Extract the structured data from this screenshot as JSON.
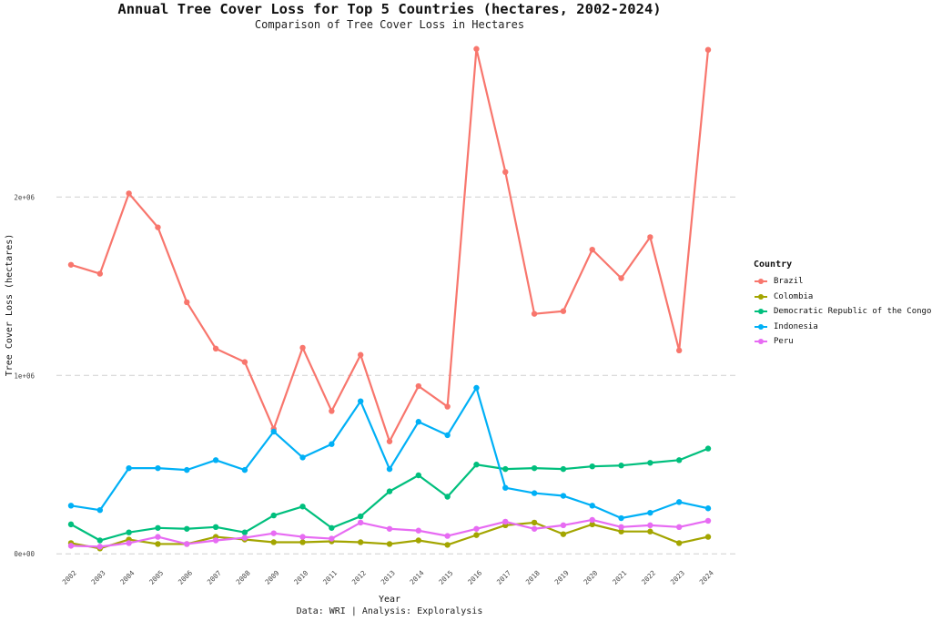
{
  "chart_data": {
    "type": "line",
    "title": "Annual Tree Cover Loss for Top 5 Countries (hectares, 2002-2024)",
    "subtitle": "Comparison of Tree Cover Loss in Hectares",
    "xlabel": "Year",
    "ylabel": "Tree Cover Loss (hectares)",
    "caption": "Data: WRI | Analysis: Exploralysis",
    "legend_title": "Country",
    "legend_position": "right",
    "grid": "horizontal major dashed",
    "ylim": [
      -50000,
      2900000
    ],
    "y_ticks": [
      0,
      1000000,
      2000000
    ],
    "y_tick_labels": [
      "0e+00",
      "1e+06",
      "2e+06"
    ],
    "x": [
      "2002",
      "2003",
      "2004",
      "2005",
      "2006",
      "2007",
      "2008",
      "2009",
      "2010",
      "2011",
      "2012",
      "2013",
      "2014",
      "2015",
      "2016",
      "2017",
      "2018",
      "2019",
      "2020",
      "2021",
      "2022",
      "2023",
      "2024"
    ],
    "series": [
      {
        "name": "Brazil",
        "color": "#F8766D",
        "values": [
          1620000,
          1570000,
          2020000,
          1830000,
          1410000,
          1150000,
          1075000,
          700000,
          1155000,
          800000,
          1115000,
          630000,
          940000,
          825000,
          2830000,
          2140000,
          1345000,
          1360000,
          1705000,
          1545000,
          1775000,
          1140000,
          2825000
        ]
      },
      {
        "name": "Colombia",
        "color": "#A3A500",
        "values": [
          60000,
          30000,
          80000,
          55000,
          55000,
          95000,
          80000,
          65000,
          65000,
          70000,
          65000,
          55000,
          75000,
          50000,
          105000,
          160000,
          175000,
          110000,
          165000,
          125000,
          125000,
          60000,
          95000
        ]
      },
      {
        "name": "Democratic Republic of the Congo",
        "color": "#00BF7D",
        "values": [
          165000,
          75000,
          120000,
          145000,
          140000,
          150000,
          120000,
          215000,
          265000,
          145000,
          210000,
          350000,
          440000,
          320000,
          500000,
          475000,
          480000,
          475000,
          490000,
          495000,
          510000,
          525000,
          590000
        ]
      },
      {
        "name": "Indonesia",
        "color": "#00B0F6",
        "values": [
          270000,
          245000,
          480000,
          480000,
          470000,
          525000,
          470000,
          685000,
          540000,
          615000,
          855000,
          475000,
          740000,
          665000,
          930000,
          370000,
          340000,
          325000,
          270000,
          200000,
          230000,
          290000,
          255000
        ]
      },
      {
        "name": "Peru",
        "color": "#E76BF3",
        "values": [
          45000,
          40000,
          60000,
          95000,
          55000,
          75000,
          90000,
          115000,
          95000,
          85000,
          175000,
          140000,
          130000,
          100000,
          140000,
          180000,
          140000,
          160000,
          190000,
          150000,
          160000,
          150000,
          185000
        ]
      }
    ]
  }
}
